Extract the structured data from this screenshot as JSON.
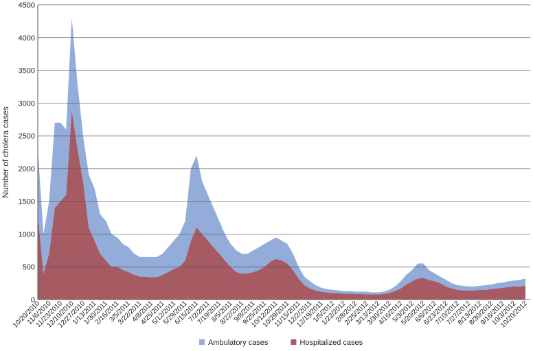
{
  "chart_data": {
    "type": "stacked_area",
    "y_label": "Number of cholera cases",
    "categories": [
      "10/20/2010",
      null,
      "11/6/2010",
      null,
      "11/23/2010",
      null,
      "12/10/2010",
      null,
      "12/27/2010",
      null,
      "1/13/2011",
      null,
      "1/30/2011",
      null,
      "2/16/2011",
      null,
      "3/5/2011",
      null,
      "3/22/2011",
      null,
      "4/8/2011",
      null,
      "4/25/2011",
      null,
      "5/12/2011",
      null,
      "5/29/2011",
      null,
      "6/15/2011",
      null,
      "7/2/2011",
      null,
      "7/19/2011",
      null,
      "8/5/2011",
      null,
      "8/22/2011",
      null,
      "9/8/2011",
      null,
      "9/25/2011",
      null,
      "10/12/2011",
      null,
      "10/29/2011",
      null,
      "11/15/2011",
      null,
      "12/2/2011",
      null,
      "12/19/2011",
      null,
      "1/5/2012",
      null,
      "1/22/2012",
      null,
      "2/8/2012",
      null,
      "2/25/2012",
      null,
      "3/13/2012",
      null,
      "3/30/2012",
      null,
      "4/16/2012",
      null,
      "5/3/2012",
      null,
      "5/20/2012",
      null,
      "6/6/2012",
      null,
      "6/23/2012",
      null,
      "7/10/2012",
      null,
      "7/27/2012",
      null,
      "8/13/2012",
      null,
      "8/30/2012",
      null,
      "9/16/2012",
      null,
      "10/3/2012",
      null,
      "10/20/2012"
    ],
    "series": [
      {
        "name": "Hospitalized cases",
        "color": "#a65a62",
        "values": [
          1300,
          400,
          700,
          1400,
          1500,
          1600,
          2900,
          2300,
          1800,
          1100,
          900,
          700,
          600,
          500,
          500,
          450,
          420,
          380,
          350,
          350,
          340,
          340,
          380,
          420,
          470,
          500,
          600,
          900,
          1100,
          1000,
          900,
          800,
          700,
          600,
          500,
          420,
          400,
          400,
          420,
          450,
          500,
          580,
          620,
          600,
          550,
          450,
          320,
          220,
          170,
          140,
          120,
          110,
          100,
          100,
          90,
          90,
          85,
          85,
          80,
          80,
          80,
          85,
          100,
          130,
          170,
          230,
          280,
          320,
          330,
          300,
          280,
          250,
          200,
          170,
          150,
          140,
          140,
          140,
          150,
          150,
          160,
          170,
          180,
          190,
          200,
          200,
          210
        ]
      },
      {
        "name": "Ambulatory cases",
        "color": "#93acd9",
        "values": [
          1000,
          600,
          800,
          1300,
          1200,
          1000,
          1400,
          1000,
          700,
          800,
          800,
          600,
          600,
          500,
          450,
          400,
          380,
          320,
          300,
          300,
          310,
          310,
          320,
          380,
          430,
          500,
          600,
          1100,
          1100,
          800,
          700,
          600,
          500,
          400,
          350,
          330,
          300,
          300,
          330,
          350,
          350,
          320,
          330,
          300,
          300,
          250,
          180,
          130,
          110,
          80,
          60,
          50,
          50,
          40,
          40,
          40,
          35,
          35,
          40,
          30,
          30,
          35,
          50,
          70,
          110,
          150,
          170,
          230,
          220,
          150,
          120,
          100,
          100,
          80,
          70,
          70,
          60,
          60,
          60,
          70,
          70,
          80,
          80,
          90,
          90,
          100,
          110
        ]
      }
    ],
    "legend_order": [
      1,
      0
    ],
    "ylim": [
      0,
      4500
    ],
    "yticks": [
      0,
      500,
      1000,
      1500,
      2000,
      2500,
      3000,
      3500,
      4000,
      4500
    ],
    "grid": true
  }
}
